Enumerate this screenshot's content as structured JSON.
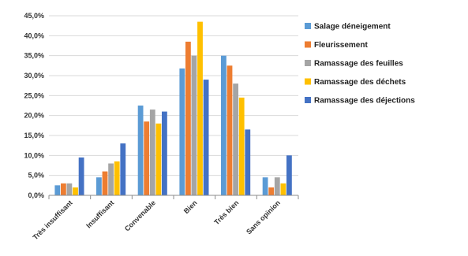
{
  "chart_data": {
    "type": "bar",
    "categories": [
      "Très insuffisant",
      "Insuffisant",
      "Convenable",
      "Bien",
      "Très bien",
      "Sans opinion"
    ],
    "series": [
      {
        "name": "Salage déneigement",
        "color": "#5B9BD5",
        "values": [
          2.5,
          4.5,
          22.5,
          31.8,
          35.0,
          4.5
        ]
      },
      {
        "name": "Fleurissement",
        "color": "#ED7D31",
        "values": [
          3.0,
          6.0,
          18.5,
          38.5,
          32.5,
          2.0
        ]
      },
      {
        "name": "Ramassage des feuilles",
        "color": "#A5A5A5",
        "values": [
          3.0,
          8.0,
          21.5,
          35.0,
          28.0,
          4.5
        ]
      },
      {
        "name": "Ramassage des déchets",
        "color": "#FFC000",
        "values": [
          2.0,
          8.5,
          18.0,
          43.5,
          24.5,
          3.0
        ]
      },
      {
        "name": "Ramassage des déjections",
        "color": "#4472C4",
        "values": [
          9.5,
          13.0,
          21.0,
          29.0,
          16.5,
          10.0
        ]
      }
    ],
    "yticks": [
      "0,0%",
      "5,0%",
      "10,0%",
      "15,0%",
      "20,0%",
      "25,0%",
      "30,0%",
      "35,0%",
      "40,0%",
      "45,0%"
    ],
    "ylim": [
      0,
      45
    ],
    "grid": true,
    "legend": "right",
    "title": "",
    "xlabel": "",
    "ylabel": ""
  }
}
